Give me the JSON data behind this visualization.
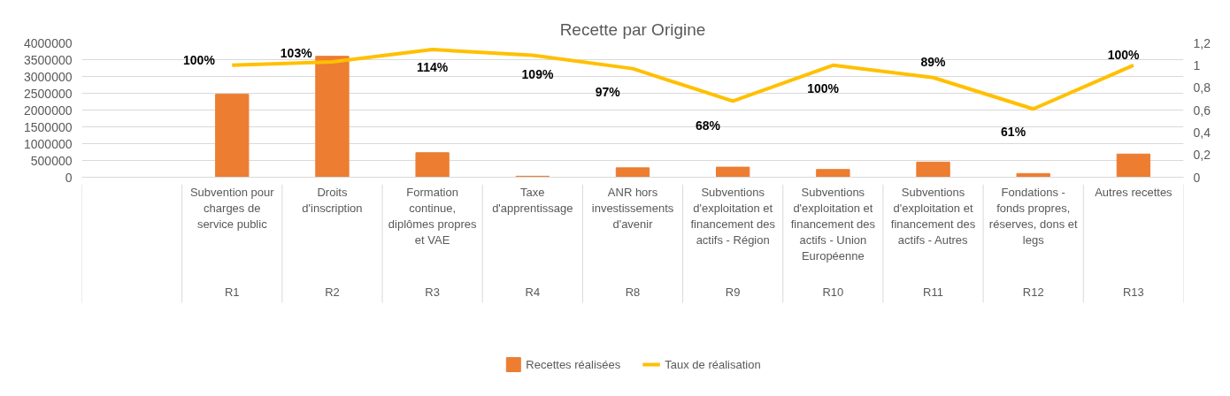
{
  "chart_data": {
    "type": "bar",
    "title": "Recette par Origine",
    "categories": [
      null,
      "Subvention pour\ncharges de\nservice public\nR1",
      "Droits\nd'inscription\nR2",
      "Formation\ncontinue,\ndiplômes propres\net VAE\nR3",
      "Taxe\nd'apprentissage\nR4",
      "ANR hors\ninvestissements\nd'avenir\nR8",
      "Subventions\nd'exploitation et\nfinancement des\nactifs - Région\nR9",
      "Subventions\nd'exploitation et\nfinancement des\nactifs - Union\nEuropéenne\nR10",
      "Subventions\nd'exploitation et\nfinancement des\nactifs - Autres\nR11",
      "Fondations -\nfonds propres,\nréserves, dons et\nlegs\nR12",
      "Autres recettes\nR13"
    ],
    "series": [
      {
        "name": "Recettes réalisées",
        "color": "#ed7d31",
        "values": [
          null,
          2470000,
          3600000,
          730000,
          30000,
          280000,
          300000,
          230000,
          450000,
          110000,
          690000
        ]
      },
      {
        "name": "Taux de réalisation",
        "type": "line",
        "axis": "y2",
        "color": "#ffc000",
        "values": [
          null,
          1.0,
          1.03,
          1.14,
          1.09,
          0.97,
          0.68,
          1.0,
          0.89,
          0.61,
          1.0
        ],
        "value_labels": [
          null,
          "100%",
          "103%",
          "114%",
          "109%",
          "97%",
          "68%",
          "100%",
          "89%",
          "61%",
          "100%"
        ]
      }
    ],
    "ylim": [
      0,
      4000000
    ],
    "yticks": [
      0,
      500000,
      1000000,
      1500000,
      2000000,
      2500000,
      3000000,
      3500000,
      4000000
    ],
    "y2lim": [
      0,
      1.2
    ],
    "y2ticks": [
      0,
      {
        "value": 0.2,
        "label": "0,2"
      },
      {
        "value": 0.4,
        "label": "0,4"
      },
      {
        "value": 0.6,
        "label": "0,6"
      },
      {
        "value": 0.8,
        "label": "0,8"
      },
      1,
      {
        "value": 1.2,
        "label": "1,2"
      }
    ],
    "grid": "y",
    "legend": "bottom",
    "line_style": "solid",
    "marker": "none"
  }
}
